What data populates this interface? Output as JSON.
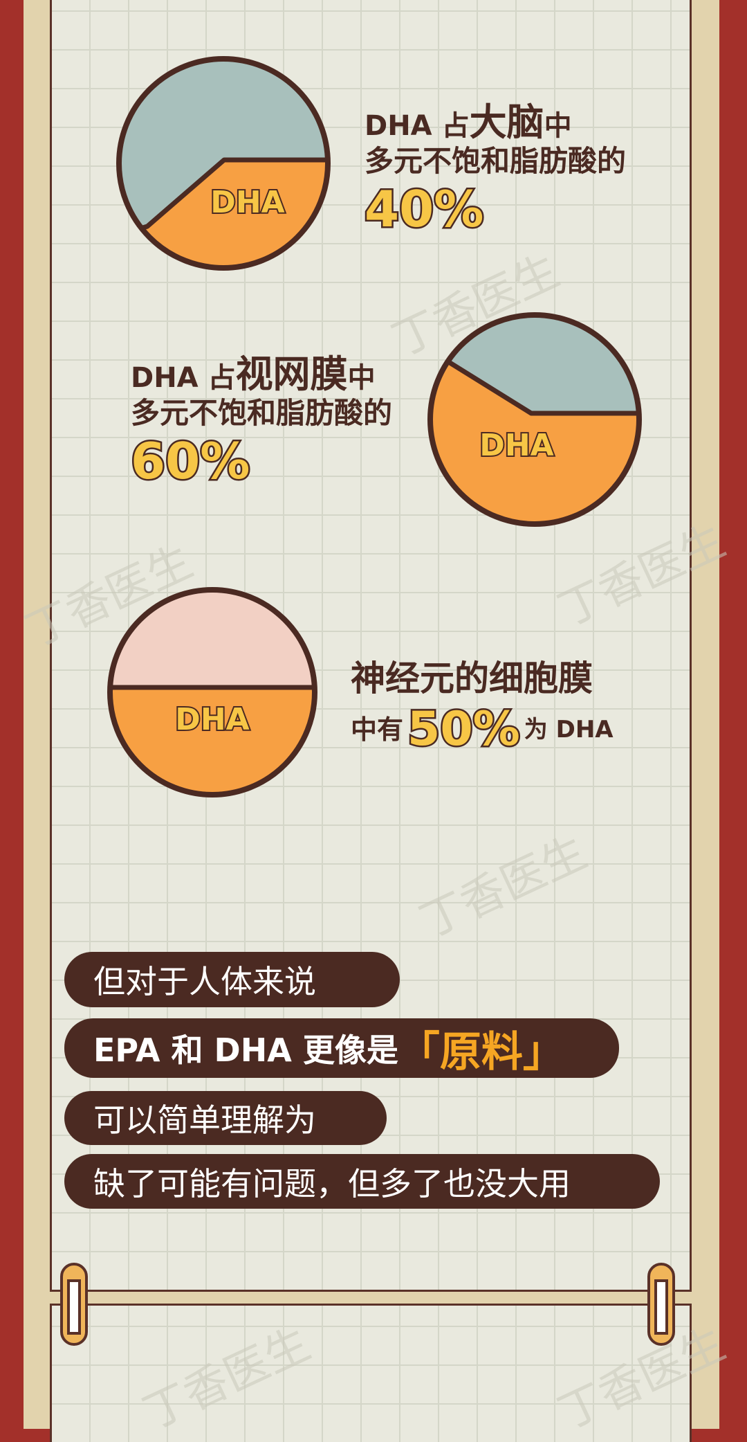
{
  "watermark": "丁香医生",
  "colors": {
    "red": "#a3302a",
    "paper": "#e9e9de",
    "brown": "#4b2a22",
    "orange": "#f7a043",
    "bluegray": "#a8c0bc",
    "pink": "#f2d0c4",
    "yellow": "#f7c646"
  },
  "pies": [
    {
      "label": "DHA",
      "dha_percent": 40,
      "other_color": "#a8c0bc"
    },
    {
      "label": "DHA",
      "dha_percent": 60,
      "other_color": "#a8c0bc"
    },
    {
      "label": "DHA",
      "dha_percent": 50,
      "other_color": "#f2d0c4"
    }
  ],
  "facts": [
    {
      "line1_prefix": "DHA 占",
      "line1_emph": "大脑",
      "line1_suffix": "中",
      "line2": "多元不饱和脂肪酸的",
      "value": "40%"
    },
    {
      "line1_prefix": "DHA 占",
      "line1_emph": "视网膜",
      "line1_suffix": "中",
      "line2": "多元不饱和脂肪酸的",
      "value": "60%"
    },
    {
      "line1": "神经元的细胞膜",
      "line2_prefix": "中有",
      "value": "50%",
      "line2_suffix": "为 DHA"
    }
  ],
  "pills": {
    "p1": "但对于人体来说",
    "p2_a": "EPA 和 DHA 更像是",
    "p2_hl": "「原料」",
    "p3": "可以简单理解为",
    "p4": "缺了可能有问题，但多了也没大用"
  }
}
